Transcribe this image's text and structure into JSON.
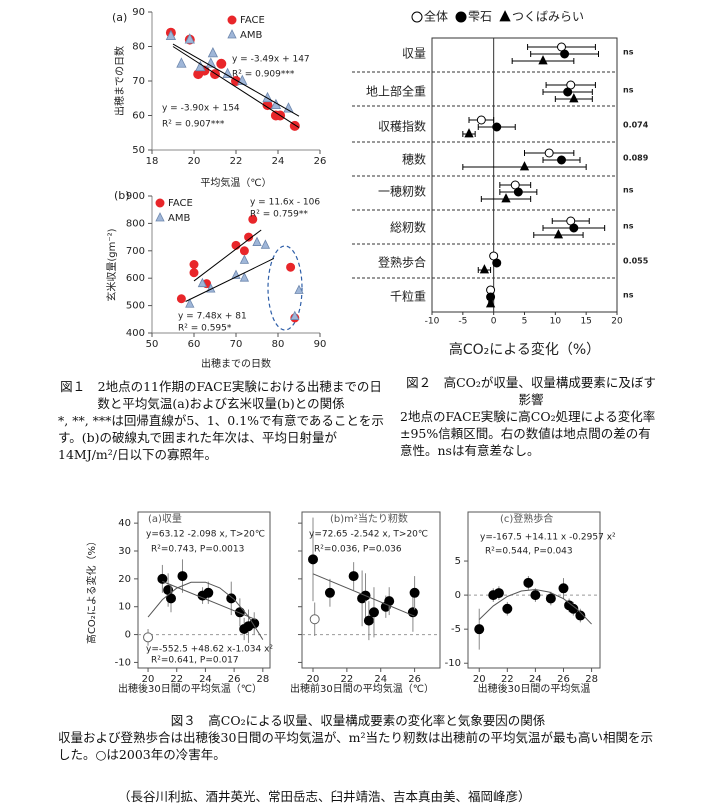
{
  "chart_data": [
    {
      "type": "scatter",
      "panel_label": "(a)",
      "xlabel": "平均気温（℃）",
      "ylabel": "出穂までの日数",
      "xlim": [
        18,
        26
      ],
      "xticks": [
        18,
        20,
        22,
        24,
        26
      ],
      "ylim": [
        50,
        90
      ],
      "yticks": [
        50,
        60,
        70,
        80,
        90
      ],
      "series": [
        {
          "name": "FACE",
          "marker": "circle",
          "filled": true,
          "color": "#e8262a",
          "x": [
            18.9,
            19.8,
            20.2,
            20.5,
            21.0,
            21.3,
            22.0,
            23.5,
            23.9,
            24.1,
            24.8
          ],
          "values": [
            84,
            82,
            72,
            73,
            72,
            75,
            70,
            63,
            60,
            60,
            57
          ]
        },
        {
          "name": "AMB",
          "marker": "triangle",
          "filled": true,
          "color": "#9fb6d8",
          "x": [
            18.9,
            19.4,
            19.8,
            20.3,
            20.8,
            20.9,
            21.6,
            22.3,
            23.5,
            23.9,
            24.5
          ],
          "values": [
            83,
            75,
            82,
            74,
            75,
            78,
            72,
            70,
            65,
            63,
            62
          ]
        },
        {
          "marker": "line",
          "color": "#000",
          "x": [
            19,
            25
          ],
          "values": [
            80,
            56.5
          ]
        },
        {
          "marker": "line",
          "color": "#000",
          "x": [
            19,
            25
          ],
          "values": [
            80.7,
            59.8
          ]
        }
      ],
      "annotations": [
        "y = -3.49x + 147",
        "R² = 0.909***",
        "y = -3.90x + 154",
        "R² = 0.907***"
      ]
    },
    {
      "type": "scatter",
      "panel_label": "(b)",
      "xlabel": "出穂までの日数",
      "ylabel": "玄米収量(gm⁻²)",
      "xlim": [
        50,
        90
      ],
      "xticks": [
        50,
        60,
        70,
        80,
        90
      ],
      "ylim": [
        400,
        900
      ],
      "yticks": [
        400,
        500,
        600,
        700,
        800,
        900
      ],
      "series": [
        {
          "name": "FACE",
          "marker": "circle",
          "filled": true,
          "color": "#e8262a",
          "x": [
            57,
            60,
            60,
            63,
            70,
            72,
            73,
            74,
            83,
            84
          ],
          "values": [
            525,
            650,
            620,
            580,
            720,
            700,
            750,
            815,
            640,
            455
          ]
        },
        {
          "name": "AMB",
          "marker": "triangle",
          "filled": true,
          "color": "#9fb6d8",
          "x": [
            59,
            62,
            64,
            70,
            72,
            72,
            75,
            77,
            84,
            85
          ],
          "values": [
            505,
            580,
            560,
            610,
            600,
            665,
            730,
            720,
            460,
            555
          ]
        },
        {
          "marker": "line",
          "color": "#000",
          "x": [
            60,
            76
          ],
          "values": [
            590,
            776
          ]
        },
        {
          "marker": "line",
          "color": "#000",
          "x": [
            58,
            79
          ],
          "values": [
            515,
            672
          ]
        }
      ],
      "annotations": [
        "y = 11.6x - 106",
        "R² = 0.759**",
        "y = 7.48x + 81",
        "R² = 0.595*"
      ]
    },
    {
      "type": "dotplot",
      "xlabel": "高CO₂による変化（%）",
      "xlim": [
        -10,
        20
      ],
      "xticks": [
        -10,
        -5,
        0,
        5,
        10,
        15,
        20
      ],
      "vline": 0,
      "categories": [
        "収量",
        "地上部全重",
        "収穫指数",
        "穂数",
        "一穂籾数",
        "総籾数",
        "登熟歩合",
        "千粒重"
      ],
      "significance": [
        "ns",
        "ns",
        "0.074",
        "0.089",
        "ns",
        "ns",
        "0.055",
        "ns"
      ],
      "series": [
        {
          "name": "全体",
          "marker": "circle",
          "filled": false,
          "color": "#000",
          "values": [
            11,
            12.5,
            -2,
            9,
            3.5,
            12.5,
            0,
            -0.5
          ],
          "errors": [
            5.5,
            4,
            2,
            4,
            2.5,
            3,
            0.5,
            0.5
          ]
        },
        {
          "name": "雫石",
          "marker": "circle",
          "filled": true,
          "color": "#000",
          "values": [
            11.5,
            12,
            0.5,
            11,
            4,
            13,
            0.5,
            -0.5
          ],
          "errors": [
            5.5,
            4,
            3,
            3,
            3,
            5,
            0.5,
            0.5
          ]
        },
        {
          "name": "つくばみらい",
          "marker": "triangle",
          "filled": true,
          "color": "#000",
          "values": [
            8,
            13,
            -4,
            5,
            2,
            10.5,
            -1.5,
            -0.5
          ],
          "errors": [
            5,
            3,
            1,
            10,
            4,
            4,
            1,
            0.3
          ]
        }
      ]
    },
    {
      "type": "scatter",
      "title": "(a)収量",
      "xlabel": "出穂後30日間の平均気温（℃）",
      "ylabel": "高CO₂による変化（%）",
      "xlim": [
        19.3,
        28.5
      ],
      "xticks": [
        20,
        22,
        24,
        26,
        28
      ],
      "ylim": [
        -12,
        44
      ],
      "yticks": [
        -10,
        0,
        10,
        20,
        30,
        40
      ],
      "hline": 0,
      "series": [
        {
          "marker": "circle",
          "filled": false,
          "color": "#666",
          "x": [
            20
          ],
          "values": [
            -1
          ],
          "errors": [
            3
          ]
        },
        {
          "marker": "circle",
          "filled": true,
          "color": "#000",
          "x": [
            21,
            21.4,
            21.6,
            22.4,
            23.8,
            24.2,
            25.8,
            26.4,
            26.7,
            27.0,
            27.4
          ],
          "values": [
            20,
            16,
            13,
            21,
            14,
            15,
            13,
            8,
            2,
            3,
            4
          ],
          "errors": [
            5,
            6,
            5,
            6,
            3,
            4,
            6,
            5,
            4,
            6,
            4
          ]
        },
        {
          "marker": "line",
          "color": "#555",
          "x": [
            21,
            27.5
          ],
          "values": [
            19.1,
            5.4
          ]
        },
        {
          "marker": "line",
          "color": "#555",
          "x": [
            20,
            21,
            22,
            23,
            24,
            25,
            26,
            27,
            28
          ],
          "values": [
            6.3,
            12.53,
            16.68,
            18.77,
            18.8,
            16.75,
            12.64,
            6.45,
            -1.8
          ]
        }
      ],
      "annotations": [
        "y=63.12 -2.098 x, T>20℃",
        "R²=0.743, P=0.0013",
        "y=-552.5 +48.62 x-1.034 x²",
        "R²=0.641, P=0.017"
      ]
    },
    {
      "type": "scatter",
      "title": "(b)m²当たり籾数",
      "xlabel": "出穂前30日間の平均気温（℃）",
      "xlim": [
        19.35,
        27.5
      ],
      "xticks": [
        20,
        22,
        24,
        26
      ],
      "ylim": [
        -12,
        44
      ],
      "yticks": [
        -10,
        0,
        10,
        20,
        30,
        40
      ],
      "ytick_labels": false,
      "hline": 0,
      "series": [
        {
          "marker": "circle",
          "filled": false,
          "color": "#666",
          "x": [
            20.1
          ],
          "values": [
            5.5
          ],
          "errors": [
            6
          ]
        },
        {
          "marker": "circle",
          "filled": true,
          "color": "#000",
          "x": [
            20,
            21,
            22.4,
            22.9,
            23.1,
            23.3,
            23.6,
            24.3,
            24.5,
            25.9,
            26
          ],
          "values": [
            27,
            15,
            21,
            13,
            14,
            5,
            8,
            10,
            12,
            8,
            15
          ],
          "errors": [
            15,
            5,
            5,
            10,
            8,
            7,
            9,
            4,
            5,
            7,
            6
          ]
        },
        {
          "marker": "line",
          "color": "#555",
          "x": [
            20,
            26
          ],
          "values": [
            21.8,
            6.6
          ]
        }
      ],
      "annotations": [
        "y=72.65 -2.542 x, T>20℃",
        "R²=0.036, P=0.036"
      ]
    },
    {
      "type": "scatter",
      "title": "(c)登熟歩合",
      "xlabel": "出穂後30日間の平均気温",
      "xlim": [
        19.2,
        28.6
      ],
      "xticks": [
        20,
        22,
        24,
        26,
        28
      ],
      "ylim": [
        -10.7,
        12.2
      ],
      "yticks": [
        -10,
        -5,
        0,
        5
      ],
      "hline": 0,
      "series": [
        {
          "marker": "circle",
          "filled": true,
          "color": "#000",
          "x": [
            20,
            21,
            21.4,
            22,
            23.5,
            24,
            25.1,
            26,
            26.4,
            26.7,
            27.2
          ],
          "values": [
            -5,
            0,
            0.3,
            -2,
            1.8,
            0,
            -0.5,
            1,
            -1.5,
            -2,
            -3
          ],
          "errors": [
            3,
            1,
            1,
            1,
            1,
            1,
            1,
            1.5,
            1,
            1,
            1
          ]
        },
        {
          "marker": "line",
          "color": "#555",
          "x": [
            20,
            21,
            22,
            23,
            24,
            25,
            26,
            27,
            28
          ],
          "values": [
            -3.58,
            -1.59,
            -0.2,
            0.6,
            0.82,
            0.44,
            -0.53,
            -2.1,
            -4.25
          ]
        }
      ],
      "annotations": [
        "y=-167.5 +14.11 x -0.2957 x²",
        "R²=0.544, P=0.043"
      ]
    }
  ],
  "captions": {
    "fig1": {
      "title": "図１　2地点の11作期のFACE実験における出穂までの日数と平均気温(a)および玄米収量(b)との関係",
      "note": "*, **, ***は回帰直線が5、1、0.1%で有意であることを示す。(b)の破線丸で囲まれた年次は、平均日射量が14MJ/m²/日以下の寡照年。"
    },
    "fig2": {
      "title": "図２　高CO₂が収量、収量構成要素に及ぼす影響",
      "note": "2地点のFACE実験に高CO₂処理による変化率±95%信頼区間。右の数値は地点間の差の有意性。nsは有意差なし。"
    },
    "fig3": {
      "title": "図３　高CO₂による収量、収量構成要素の変化率と気象要因の関係",
      "note": "収量および登熟歩合は出穂後30日間の平均気温が、m²当たり籾数は出穂前の平均気温が最も高い相関を示した。○は2003年の冷害年。"
    },
    "authors": "（長谷川利拡、酒井英光、常田岳志、臼井靖浩、吉本真由美、福岡峰彦）"
  }
}
